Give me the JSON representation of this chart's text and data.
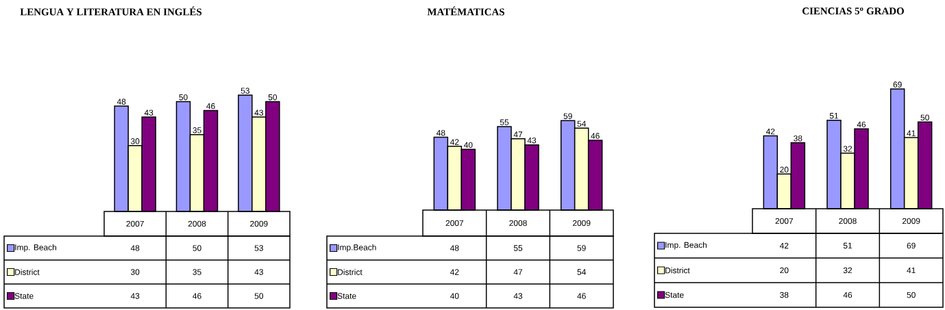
{
  "chart_data": [
    {
      "type": "bar",
      "title": "LENGUA Y LITERATURA EN INGLÉS",
      "categories": [
        "2007",
        "2008",
        "2009"
      ],
      "data_labels": true,
      "legend": "bottom left",
      "series": [
        {
          "name": "Imp. Beach",
          "color": "#9999ff",
          "values": [
            48,
            50,
            53
          ],
          "value_labels": [
            "48",
            "50",
            "53"
          ]
        },
        {
          "name": "District",
          "color": "#ffffcc",
          "values": [
            30,
            35,
            43
          ],
          "value_labels": [
            "30",
            "35",
            "43"
          ]
        },
        {
          "name": "State",
          "color": "#800080",
          "values": [
            43,
            46,
            50
          ],
          "value_labels": [
            "43",
            "46",
            "50"
          ]
        }
      ]
    },
    {
      "type": "bar",
      "title": "MATÉMATICAS",
      "categories": [
        "2007",
        "2008",
        "2009"
      ],
      "data_labels": true,
      "legend": "bottom left",
      "series": [
        {
          "name": "Imp.Beach",
          "color": "#9999ff",
          "values": [
            48,
            55,
            59
          ],
          "value_labels": [
            "48",
            "55",
            "59"
          ]
        },
        {
          "name": "District",
          "color": "#ffffcc",
          "values": [
            42,
            47,
            54
          ],
          "value_labels": [
            "42",
            "47",
            "54"
          ]
        },
        {
          "name": "State",
          "color": "#800080",
          "values": [
            40,
            43,
            46
          ],
          "value_labels": [
            "40",
            "43",
            "46"
          ]
        }
      ]
    },
    {
      "type": "bar",
      "title": "CIENCIAS 5$^{o}$ GRADO",
      "categories": [
        "2007",
        "2008",
        "2009"
      ],
      "data_labels": true,
      "legend": "bottom left",
      "series": [
        {
          "name": "Imp. Beach",
          "color": "#9999ff",
          "values": [
            42,
            51,
            69
          ],
          "value_labels": [
            "42",
            "51",
            "69"
          ]
        },
        {
          "name": "District",
          "color": "#ffffcc",
          "values": [
            20,
            32,
            41
          ],
          "value_labels": [
            "20",
            "32",
            "41"
          ]
        },
        {
          "name": "State",
          "color": "#800080",
          "values": [
            38,
            46,
            50
          ],
          "value_labels": [
            "38",
            "46",
            "50"
          ]
        }
      ]
    }
  ]
}
